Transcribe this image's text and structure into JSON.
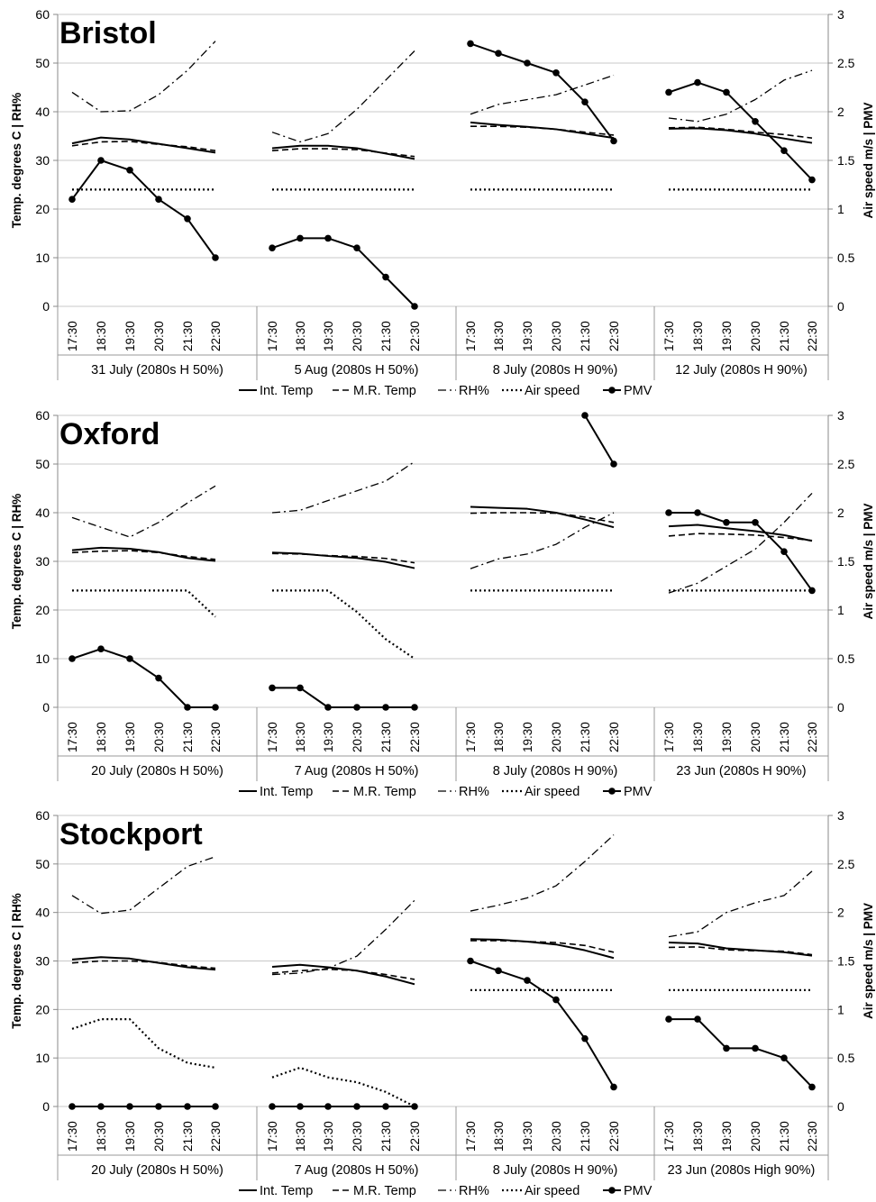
{
  "figure": {
    "left_axis_label": "Temp. degrees C | RH%",
    "right_axis_label": "Air speed m/s | PMV",
    "time_labels": [
      "17:30",
      "18:30",
      "19:30",
      "20:30",
      "21:30",
      "22:30"
    ],
    "left_ticks": [
      "0",
      "10",
      "20",
      "30",
      "40",
      "50",
      "60"
    ],
    "right_ticks": [
      "0",
      "0.5",
      "1",
      "1.5",
      "2",
      "2.5",
      "3"
    ],
    "legend": [
      "Int. Temp",
      "M.R. Temp",
      "RH%",
      "Air speed",
      "PMV"
    ]
  },
  "chart_data": [
    {
      "type": "line",
      "title": "Bristol",
      "ylabel": "Temp. degrees C | RH%",
      "y2label": "Air speed m/s | PMV",
      "ylim": [
        0,
        60
      ],
      "y2lim": [
        0,
        3
      ],
      "groups": [
        {
          "label": "31 July (2080s H 50%)",
          "x": [
            "17:30",
            "18:30",
            "19:30",
            "20:30",
            "21:30",
            "22:30"
          ],
          "int_temp": [
            33.5,
            34.7,
            34.3,
            33.4,
            32.5,
            31.6
          ],
          "mr_temp": [
            33.0,
            33.8,
            33.9,
            33.3,
            32.8,
            32.0
          ],
          "rh": [
            44,
            40,
            40.2,
            43.5,
            48.5,
            54.5
          ],
          "air_speed": [
            1.2,
            1.2,
            1.2,
            1.2,
            1.2,
            1.2
          ],
          "pmv": [
            1.1,
            1.5,
            1.4,
            1.1,
            0.9,
            0.5
          ]
        },
        {
          "label": "5 Aug (2080s H 50%)",
          "x": [
            "17:30",
            "18:30",
            "19:30",
            "20:30",
            "21:30",
            "22:30"
          ],
          "int_temp": [
            32.5,
            33.0,
            33.0,
            32.5,
            31.4,
            30.3
          ],
          "mr_temp": [
            32.0,
            32.4,
            32.4,
            32.2,
            31.5,
            30.8
          ],
          "rh": [
            35.8,
            33.8,
            35.5,
            40.5,
            46.5,
            52.5
          ],
          "air_speed": [
            1.2,
            1.2,
            1.2,
            1.2,
            1.2,
            1.2
          ],
          "pmv": [
            0.6,
            0.7,
            0.7,
            0.6,
            0.3,
            0.0
          ]
        },
        {
          "label": "8 July (2080s H 90%)",
          "x": [
            "17:30",
            "18:30",
            "19:30",
            "20:30",
            "21:30",
            "22:30"
          ],
          "int_temp": [
            37.8,
            37.3,
            36.9,
            36.4,
            35.5,
            34.6
          ],
          "mr_temp": [
            37.0,
            37.0,
            36.8,
            36.4,
            35.8,
            35.2
          ],
          "rh": [
            39.5,
            41.5,
            42.5,
            43.5,
            45.5,
            47.5
          ],
          "air_speed": [
            1.2,
            1.2,
            1.2,
            1.2,
            1.2,
            1.2
          ],
          "pmv": [
            2.7,
            2.6,
            2.5,
            2.4,
            2.1,
            1.7
          ]
        },
        {
          "label": "12 July (2080s H 90%)",
          "x": [
            "17:30",
            "18:30",
            "19:30",
            "20:30",
            "21:30",
            "22:30"
          ],
          "int_temp": [
            36.5,
            36.6,
            36.2,
            35.5,
            34.5,
            33.6
          ],
          "mr_temp": [
            36.7,
            36.8,
            36.4,
            35.8,
            35.3,
            34.6
          ],
          "rh": [
            38.7,
            38,
            39.5,
            42.5,
            46.5,
            48.5
          ],
          "air_speed": [
            1.2,
            1.2,
            1.2,
            1.2,
            1.2,
            1.2
          ],
          "pmv": [
            2.2,
            2.3,
            2.2,
            1.9,
            1.6,
            1.3
          ]
        }
      ]
    },
    {
      "type": "line",
      "title": "Oxford",
      "ylabel": "Temp. degrees C | RH%",
      "y2label": "Air speed m/s | PMV",
      "ylim": [
        0,
        60
      ],
      "y2lim": [
        0,
        3
      ],
      "groups": [
        {
          "label": "20 July (2080s H 50%)",
          "x": [
            "17:30",
            "18:30",
            "19:30",
            "20:30",
            "21:30",
            "22:30"
          ],
          "int_temp": [
            32.3,
            32.8,
            32.6,
            31.9,
            30.7,
            30.1
          ],
          "mr_temp": [
            31.8,
            32.1,
            32.2,
            31.8,
            31.0,
            30.4
          ],
          "rh": [
            39,
            37,
            35,
            38,
            42,
            45.5
          ],
          "air_speed": [
            1.2,
            1.2,
            1.2,
            1.2,
            1.2,
            0.93
          ],
          "pmv": [
            0.5,
            0.6,
            0.5,
            0.3,
            0.0,
            0.0
          ]
        },
        {
          "label": "7 Aug (2080s H 50%)",
          "x": [
            "17:30",
            "18:30",
            "19:30",
            "20:30",
            "21:30",
            "22:30"
          ],
          "int_temp": [
            31.8,
            31.6,
            31.1,
            30.7,
            29.9,
            28.6
          ],
          "mr_temp": [
            31.6,
            31.5,
            31.2,
            31.0,
            30.6,
            29.7
          ],
          "rh": [
            40,
            40.5,
            42.5,
            44.5,
            46.5,
            50.5
          ],
          "air_speed": [
            1.2,
            1.2,
            1.2,
            0.98,
            0.7,
            0.5
          ],
          "pmv": [
            0.2,
            0.2,
            0.0,
            0.0,
            0.0,
            0.0
          ]
        },
        {
          "label": "8 July (2080s H 90%)",
          "x": [
            "17:30",
            "18:30",
            "19:30",
            "20:30",
            "21:30",
            "22:30"
          ],
          "int_temp": [
            41.2,
            41.0,
            40.8,
            40.0,
            38.6,
            37.0
          ],
          "mr_temp": [
            39.9,
            40.0,
            40.0,
            39.9,
            39.1,
            38.0
          ],
          "rh": [
            28.5,
            30.5,
            31.5,
            33.5,
            37,
            40
          ],
          "air_speed": [
            1.2,
            1.2,
            1.2,
            1.2,
            1.2,
            1.2
          ],
          "pmv": [
            null,
            null,
            null,
            null,
            3.0,
            2.5
          ]
        },
        {
          "label": "23 Jun (2080s H 90%)",
          "x": [
            "17:30",
            "18:30",
            "19:30",
            "20:30",
            "21:30",
            "22:30"
          ],
          "int_temp": [
            37.2,
            37.5,
            36.8,
            36.2,
            35.4,
            34.2
          ],
          "mr_temp": [
            35.2,
            35.7,
            35.6,
            35.4,
            34.9,
            34.3
          ],
          "rh": [
            23.5,
            25.5,
            29,
            32.5,
            38,
            44
          ],
          "air_speed": [
            1.2,
            1.2,
            1.2,
            1.2,
            1.2,
            1.2
          ],
          "pmv": [
            2.0,
            2.0,
            1.9,
            1.9,
            1.6,
            1.2
          ]
        }
      ]
    },
    {
      "type": "line",
      "title": "Stockport",
      "ylabel": "Temp. degrees C | RH%",
      "y2label": "Air speed m/s | PMV",
      "ylim": [
        0,
        60
      ],
      "y2lim": [
        0,
        3
      ],
      "groups": [
        {
          "label": "20 July (2080s H 50%)",
          "x": [
            "17:30",
            "18:30",
            "19:30",
            "20:30",
            "21:30",
            "22:30"
          ],
          "int_temp": [
            30.3,
            30.8,
            30.5,
            29.6,
            28.7,
            28.2
          ],
          "mr_temp": [
            29.6,
            30.0,
            30.0,
            29.7,
            29.0,
            28.5
          ],
          "rh": [
            43.5,
            39.8,
            40.5,
            45,
            49.5,
            51.5
          ],
          "air_speed": [
            0.8,
            0.9,
            0.9,
            0.6,
            0.45,
            0.4
          ],
          "pmv": [
            0.0,
            0.0,
            0.0,
            0.0,
            0.0,
            0.0
          ]
        },
        {
          "label": "7 Aug (2080s H 50%)",
          "x": [
            "17:30",
            "18:30",
            "19:30",
            "20:30",
            "21:30",
            "22:30"
          ],
          "int_temp": [
            28.8,
            29.2,
            28.7,
            28.0,
            26.8,
            25.2
          ],
          "mr_temp": [
            27.5,
            28.0,
            28.3,
            28.0,
            27.2,
            26.2
          ],
          "rh": [
            27.2,
            27.5,
            28.5,
            31,
            36.5,
            42.5
          ],
          "air_speed": [
            0.3,
            0.4,
            0.3,
            0.25,
            0.15,
            0.0
          ],
          "pmv": [
            0.0,
            0.0,
            0.0,
            0.0,
            0.0,
            0.0
          ]
        },
        {
          "label": "8 July (2080s H 90%)",
          "x": [
            "17:30",
            "18:30",
            "19:30",
            "20:30",
            "21:30",
            "22:30"
          ],
          "int_temp": [
            34.5,
            34.4,
            34.0,
            33.4,
            32.2,
            30.6
          ],
          "mr_temp": [
            34.2,
            34.2,
            34.0,
            33.8,
            33.2,
            31.8
          ],
          "rh": [
            40.3,
            41.5,
            43,
            45.5,
            50.5,
            56
          ],
          "air_speed": [
            1.2,
            1.2,
            1.2,
            1.2,
            1.2,
            1.2
          ],
          "pmv": [
            1.5,
            1.4,
            1.3,
            1.1,
            0.7,
            0.2
          ]
        },
        {
          "label": "23 Jun (2080s High 90%)",
          "x": [
            "17:30",
            "18:30",
            "19:30",
            "20:30",
            "21:30",
            "22:30"
          ],
          "int_temp": [
            33.8,
            33.6,
            32.6,
            32.2,
            31.8,
            31.1
          ],
          "mr_temp": [
            32.8,
            32.9,
            32.3,
            32.1,
            32.0,
            31.3
          ],
          "rh": [
            35,
            36,
            40,
            42,
            43.5,
            48.5
          ],
          "air_speed": [
            1.2,
            1.2,
            1.2,
            1.2,
            1.2,
            1.2
          ],
          "pmv": [
            0.9,
            0.9,
            0.6,
            0.6,
            0.5,
            0.2
          ]
        }
      ]
    }
  ]
}
